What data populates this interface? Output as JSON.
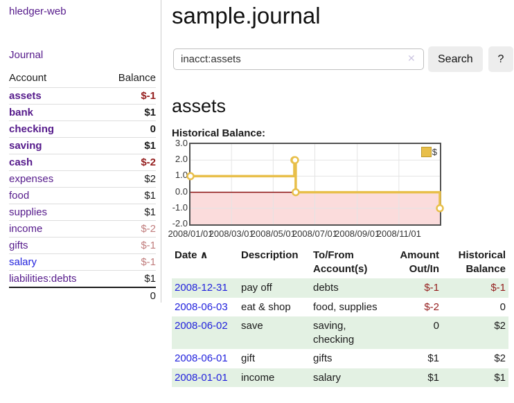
{
  "app_title": "hledger-web",
  "colors": {
    "link_purple": "#551a8b",
    "link_blue": "#2222dd",
    "negative": "#941d1d",
    "negative_faint": "#c17d7d",
    "row_green": "#e3f1e3",
    "chart_gold": "#e8bf4a"
  },
  "sidebar": {
    "nav_journal": "Journal",
    "accounts_table": {
      "headers": {
        "account": "Account",
        "balance": "Balance"
      },
      "rows": [
        {
          "account": "assets",
          "balance": "$-1",
          "depth": 0,
          "in_query": true,
          "balance_style": "neg",
          "link_style": "purple"
        },
        {
          "account": "bank",
          "balance": "$1",
          "depth": 1,
          "in_query": true,
          "balance_style": "",
          "link_style": "purple"
        },
        {
          "account": "checking",
          "balance": "0",
          "depth": 2,
          "in_query": true,
          "balance_style": "",
          "link_style": "purple"
        },
        {
          "account": "saving",
          "balance": "$1",
          "depth": 2,
          "in_query": true,
          "balance_style": "",
          "link_style": "purple"
        },
        {
          "account": "cash",
          "balance": "$-2",
          "depth": 1,
          "in_query": true,
          "balance_style": "neg",
          "link_style": "purple"
        },
        {
          "account": "expenses",
          "balance": "$2",
          "depth": 0,
          "in_query": false,
          "balance_style": "",
          "link_style": "purple"
        },
        {
          "account": "food",
          "balance": "$1",
          "depth": 1,
          "in_query": false,
          "balance_style": "",
          "link_style": "purple"
        },
        {
          "account": "supplies",
          "balance": "$1",
          "depth": 1,
          "in_query": false,
          "balance_style": "",
          "link_style": "purple"
        },
        {
          "account": "income",
          "balance": "$-2",
          "depth": 0,
          "in_query": false,
          "balance_style": "negfaint",
          "link_style": "purple"
        },
        {
          "account": "gifts",
          "balance": "$-1",
          "depth": 1,
          "in_query": false,
          "balance_style": "negfaint",
          "link_style": "purple"
        },
        {
          "account": "salary",
          "balance": "$-1",
          "depth": 1,
          "in_query": false,
          "balance_style": "negfaint",
          "link_style": "blue"
        },
        {
          "account": "liabilities:debts",
          "balance": "$1",
          "depth": 0,
          "in_query": false,
          "balance_style": "",
          "link_style": "purple"
        }
      ],
      "total": "0"
    }
  },
  "main": {
    "journal_title": "sample.journal",
    "search": {
      "value": "inacct:assets",
      "clear_icon": "✕",
      "search_button": "Search",
      "help_button": "?"
    },
    "account_heading": "assets",
    "chart_title": "Historical Balance:"
  },
  "chart_data": {
    "type": "line",
    "step": true,
    "title": "Historical Balance",
    "series": [
      {
        "name": "$",
        "color": "#e8bf4a",
        "points": [
          [
            "2008-01-01",
            1.0
          ],
          [
            "2008-06-01",
            2.0
          ],
          [
            "2008-06-02",
            2.0
          ],
          [
            "2008-06-03",
            0.0
          ],
          [
            "2008-12-31",
            -1.0
          ]
        ]
      }
    ],
    "ylim": [
      -2.0,
      3.0
    ],
    "yticks": [
      "3.0",
      "2.0",
      "1.0",
      "0.0",
      "-1.0",
      "-2.0"
    ],
    "x_range": [
      "2008-01-01",
      "2008-12-31"
    ],
    "xticks": [
      {
        "date": "2008-01-01",
        "label": "2008/01/01"
      },
      {
        "date": "2008-03-01",
        "label": "2008/03/01"
      },
      {
        "date": "2008-05-01",
        "label": "2008/05/01"
      },
      {
        "date": "2008-07-01",
        "label": "2008/07/01"
      },
      {
        "date": "2008-09-01",
        "label": "2008/09/01"
      },
      {
        "date": "2008-11-01",
        "label": "2008/11/01"
      }
    ],
    "grid": true,
    "negative_region_color": "#fbdcdc",
    "zero_line_color": "#8b1414",
    "gridline_color": "#e4e4e4",
    "legend": {
      "label": "$",
      "position": "top-right"
    }
  },
  "register": {
    "headers": [
      {
        "label": "Date",
        "sort_icon": "∧"
      },
      {
        "label": "Description"
      },
      {
        "label": "To/From Account(s)"
      },
      {
        "label": "Amount Out/In"
      },
      {
        "label": "Historical Balance"
      }
    ],
    "rows": [
      {
        "date": "2008-12-31",
        "description": "pay off",
        "accounts": "debts",
        "amount": "$-1",
        "amount_negative": true,
        "balance": "$-1",
        "balance_negative": true
      },
      {
        "date": "2008-06-03",
        "description": "eat & shop",
        "accounts": "food, supplies",
        "amount": "$-2",
        "amount_negative": true,
        "balance": "0",
        "balance_negative": false
      },
      {
        "date": "2008-06-02",
        "description": "save",
        "accounts": "saving, checking",
        "amount": "0",
        "amount_negative": false,
        "balance": "$2",
        "balance_negative": false
      },
      {
        "date": "2008-06-01",
        "description": "gift",
        "accounts": "gifts",
        "amount": "$1",
        "amount_negative": false,
        "balance": "$2",
        "balance_negative": false
      },
      {
        "date": "2008-01-01",
        "description": "income",
        "accounts": "salary",
        "amount": "$1",
        "amount_negative": false,
        "balance": "$1",
        "balance_negative": false
      }
    ]
  }
}
